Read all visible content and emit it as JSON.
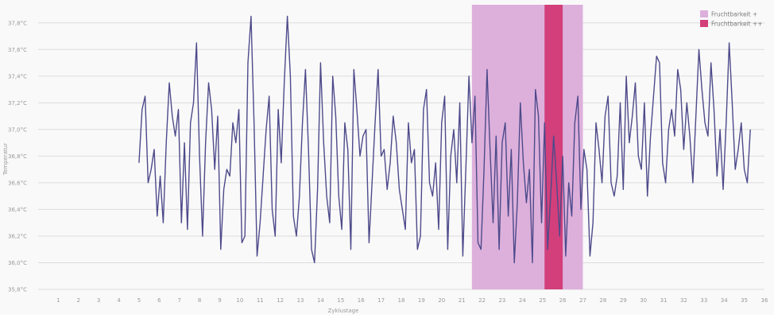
{
  "chart_data": {
    "type": "line",
    "xlabel": "Zyklustage",
    "ylabel": "Temperatur",
    "xlim": [
      0,
      36
    ],
    "ylim": [
      35.8,
      37.9
    ],
    "y_ticks": [
      "35,8°C",
      "36,0°C",
      "36,2°C",
      "36,4°C",
      "36,6°C",
      "36,8°C",
      "37,0°C",
      "37,2°C",
      "37,4°C",
      "37,6°C",
      "37,8°C"
    ],
    "y_tick_values": [
      35.8,
      36.0,
      36.2,
      36.4,
      36.6,
      36.8,
      37.0,
      37.2,
      37.4,
      37.6,
      37.8
    ],
    "x_ticks": [
      "1",
      "2",
      "3",
      "4",
      "5",
      "6",
      "7",
      "8",
      "9",
      "10",
      "11",
      "12",
      "13",
      "14",
      "15",
      "16",
      "17",
      "18",
      "19",
      "20",
      "21",
      "22",
      "23",
      "24",
      "25",
      "26",
      "27",
      "28",
      "29",
      "30",
      "31",
      "32",
      "33",
      "34",
      "35",
      "36"
    ],
    "grid": true,
    "legend": "top-right",
    "legend_entries": [
      {
        "label": "Fruchtbarkeit +",
        "color": "#ddb0dc"
      },
      {
        "label": "Fruchtbarkeit ++",
        "color": "#d23f7b"
      }
    ],
    "bands": [
      {
        "legend": 0,
        "x_start": 21.5,
        "x_end": 27.0
      },
      {
        "legend": 1,
        "x_start": 25.1,
        "x_end": 26.0
      }
    ],
    "line_color": "#4d4a8a",
    "series": [
      {
        "x_start": 5.0,
        "x_end": 35.3,
        "values": [
          36.75,
          37.15,
          37.25,
          36.6,
          36.7,
          36.85,
          36.35,
          36.65,
          36.3,
          36.9,
          37.35,
          37.1,
          36.95,
          37.15,
          36.3,
          36.9,
          36.25,
          37.05,
          37.2,
          37.65,
          36.8,
          36.2,
          36.9,
          37.35,
          37.15,
          36.7,
          37.1,
          36.1,
          36.55,
          36.7,
          36.65,
          37.05,
          36.9,
          37.15,
          36.15,
          36.2,
          37.5,
          37.85,
          37.05,
          36.05,
          36.3,
          36.65,
          37.0,
          37.25,
          36.4,
          36.2,
          37.15,
          36.75,
          37.35,
          37.85,
          37.4,
          36.35,
          36.2,
          36.5,
          37.05,
          37.45,
          36.85,
          36.1,
          36.0,
          36.55,
          37.5,
          36.9,
          36.5,
          36.3,
          37.4,
          37.1,
          36.5,
          36.25,
          37.05,
          36.85,
          36.1,
          37.45,
          37.15,
          36.8,
          36.95,
          37.0,
          36.15,
          36.6,
          37.05,
          37.45,
          36.8,
          36.85,
          36.55,
          36.75,
          37.1,
          36.9,
          36.55,
          36.4,
          36.25,
          37.05,
          36.75,
          36.85,
          36.1,
          36.2,
          37.15,
          37.3,
          36.6,
          36.5,
          36.75,
          36.25,
          37.05,
          37.25,
          36.1,
          36.8,
          37.0,
          36.6,
          37.2,
          36.05,
          36.7,
          37.4,
          36.9,
          37.25,
          36.15,
          36.1,
          36.7,
          37.45,
          36.85,
          36.3,
          36.95,
          36.1,
          36.9,
          37.05,
          36.35,
          36.85,
          36.0,
          36.45,
          37.2,
          36.75,
          36.45,
          36.7,
          36.0,
          37.3,
          37.1,
          36.3,
          37.05,
          36.1,
          36.5,
          36.95,
          36.6,
          36.2,
          36.8,
          36.05,
          36.6,
          36.35,
          37.05,
          37.25,
          36.4,
          36.85,
          36.7,
          36.05,
          36.3,
          37.05,
          36.85,
          36.6,
          37.1,
          37.25,
          36.6,
          36.5,
          36.65,
          37.2,
          36.55,
          37.4,
          36.9,
          37.1,
          37.35,
          36.8,
          36.7,
          37.2,
          36.5,
          36.95,
          37.25,
          37.55,
          37.5,
          36.75,
          36.6,
          37.0,
          37.15,
          36.95,
          37.45,
          37.3,
          36.85,
          37.2,
          36.95,
          36.6,
          37.1,
          37.6,
          37.3,
          37.05,
          36.95,
          37.5,
          37.15,
          36.65,
          37.0,
          36.55,
          37.05,
          37.65,
          37.2,
          36.7,
          36.85,
          37.05,
          36.7,
          36.6,
          37.0
        ]
      }
    ]
  }
}
